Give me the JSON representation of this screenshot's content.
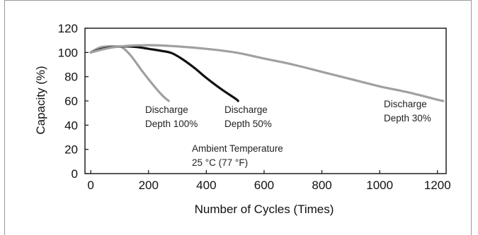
{
  "chart_data": {
    "type": "line",
    "title": "",
    "xlabel": "Number of Cycles (Times)",
    "ylabel": "Capacity (%)",
    "xlim": [
      -20,
      1230
    ],
    "ylim": [
      0,
      120
    ],
    "xticks": [
      0,
      200,
      400,
      600,
      800,
      1000,
      1200
    ],
    "yticks": [
      0,
      20,
      40,
      60,
      80,
      100,
      120
    ],
    "grid": false,
    "series": [
      {
        "name": "Discharge Depth 100%",
        "color": "#a0a0a0",
        "x": [
          0,
          30,
          60,
          90,
          110,
          140,
          180,
          220,
          250,
          270
        ],
        "y": [
          100,
          104,
          105,
          105,
          104,
          97,
          84,
          72,
          64,
          60
        ]
      },
      {
        "name": "Discharge Depth 50%",
        "color": "#111111",
        "x": [
          0,
          40,
          80,
          120,
          160,
          200,
          240,
          280,
          320,
          360,
          400,
          450,
          500,
          510
        ],
        "y": [
          100,
          103,
          104.5,
          105,
          104.5,
          103,
          101.5,
          99.5,
          94,
          87,
          79,
          70,
          62,
          60
        ]
      },
      {
        "name": "Discharge Depth 30%",
        "color": "#a0a0a0",
        "x": [
          0,
          50,
          100,
          200,
          300,
          400,
          500,
          600,
          700,
          800,
          900,
          1000,
          1100,
          1200,
          1220
        ],
        "y": [
          100,
          103,
          105,
          106,
          105,
          103,
          100,
          95,
          90,
          84,
          78,
          72,
          67,
          61,
          60
        ]
      }
    ],
    "annotations": {
      "depth100_line1": "Discharge",
      "depth100_line2": "Depth 100%",
      "depth50_line1": "Discharge",
      "depth50_line2": "Depth 50%",
      "depth30_line1": "Discharge",
      "depth30_line2": "Depth 30%",
      "ambient_line1": "Ambient Temperature",
      "ambient_line2": "25 °C (77 °F)"
    }
  }
}
